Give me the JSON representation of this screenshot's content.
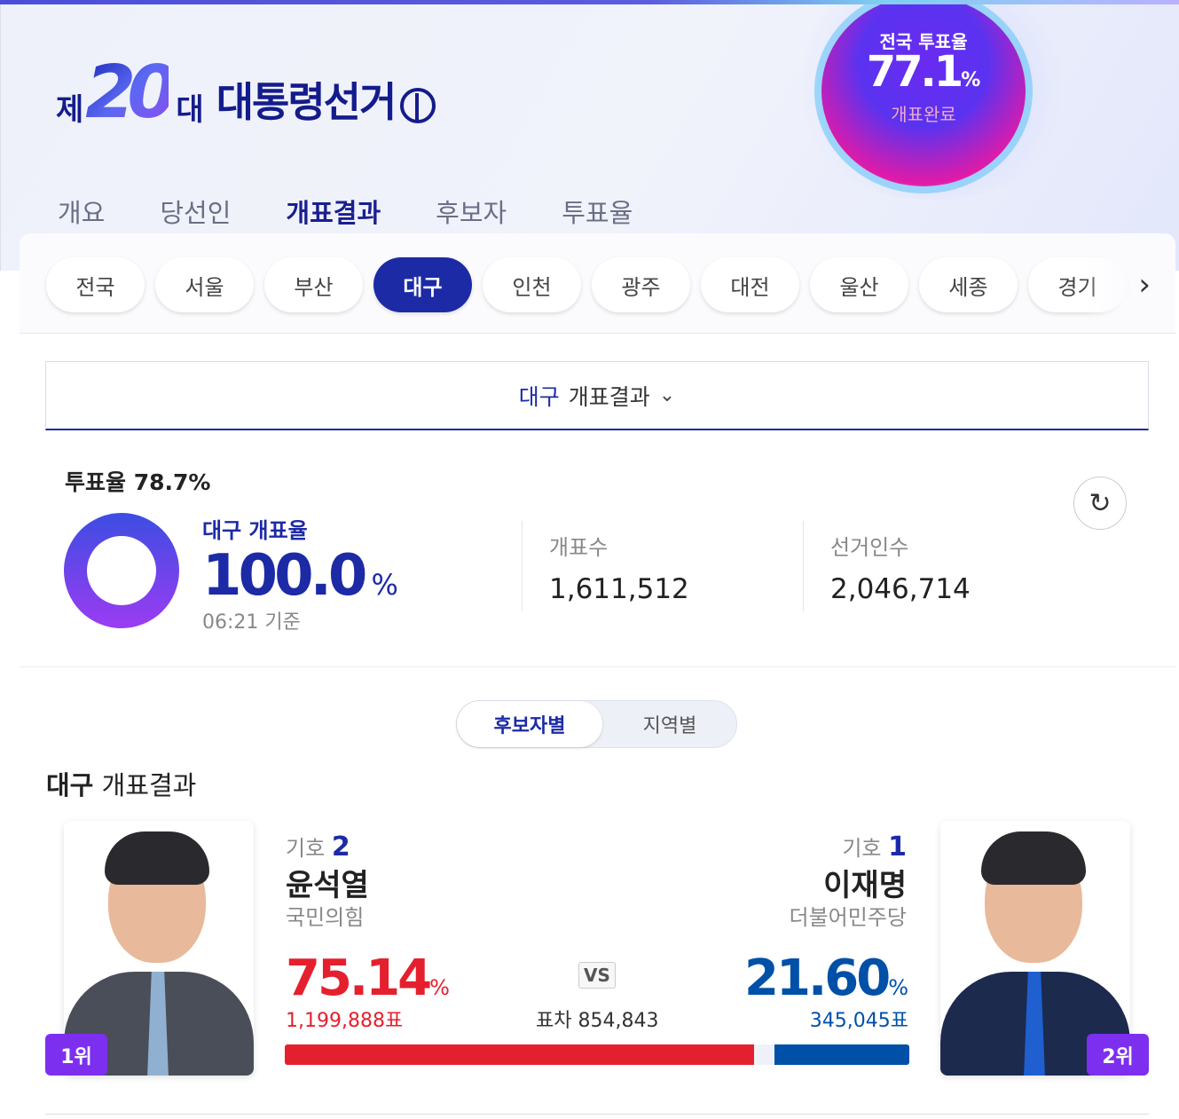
{
  "header": {
    "logo": {
      "prefix": "제",
      "number": "20",
      "suffix": "대",
      "title": "대통령선거"
    },
    "national": {
      "label": "전국 투표율",
      "value": "77.1",
      "unit": "%",
      "status": "개표완료"
    },
    "nav": [
      {
        "label": "개요"
      },
      {
        "label": "당선인"
      },
      {
        "label": "개표결과",
        "active": true
      },
      {
        "label": "후보자"
      },
      {
        "label": "투표율"
      }
    ]
  },
  "regions": {
    "items": [
      "전국",
      "서울",
      "부산",
      "대구",
      "인천",
      "광주",
      "대전",
      "울산",
      "세종",
      "경기"
    ],
    "active": "대구"
  },
  "dropdown": {
    "region": "대구",
    "label": "개표결과"
  },
  "summary": {
    "turnout_label": "투표율 78.7%",
    "count_label": "대구 개표율",
    "count_value": "100.0",
    "count_unit": "%",
    "count_time": "06:21 기준",
    "counted_label": "개표수",
    "counted_value": "1,611,512",
    "electorate_label": "선거인수",
    "electorate_value": "2,046,714"
  },
  "toggle": {
    "by_candidate": "후보자별",
    "by_region": "지역별"
  },
  "results": {
    "title_region": "대구",
    "title_rest": "개표결과",
    "vs": "VS",
    "diff": "표차 854,843",
    "candidates": [
      {
        "number_label": "기호",
        "number": "2",
        "name": "윤석열",
        "party": "국민의힘",
        "pct": "75.14",
        "pct_unit": "%",
        "votes": "1,199,888표",
        "rank": "1위",
        "color": "#e5202e",
        "share": 75.14
      },
      {
        "number_label": "기호",
        "number": "1",
        "name": "이재명",
        "party": "더불어민주당",
        "pct": "21.60",
        "pct_unit": "%",
        "votes": "345,045표",
        "rank": "2위",
        "color": "#0050a8",
        "share": 21.6
      }
    ]
  },
  "colors": {
    "accent": "#1c2aa6",
    "rank": "#7d2ff0"
  }
}
